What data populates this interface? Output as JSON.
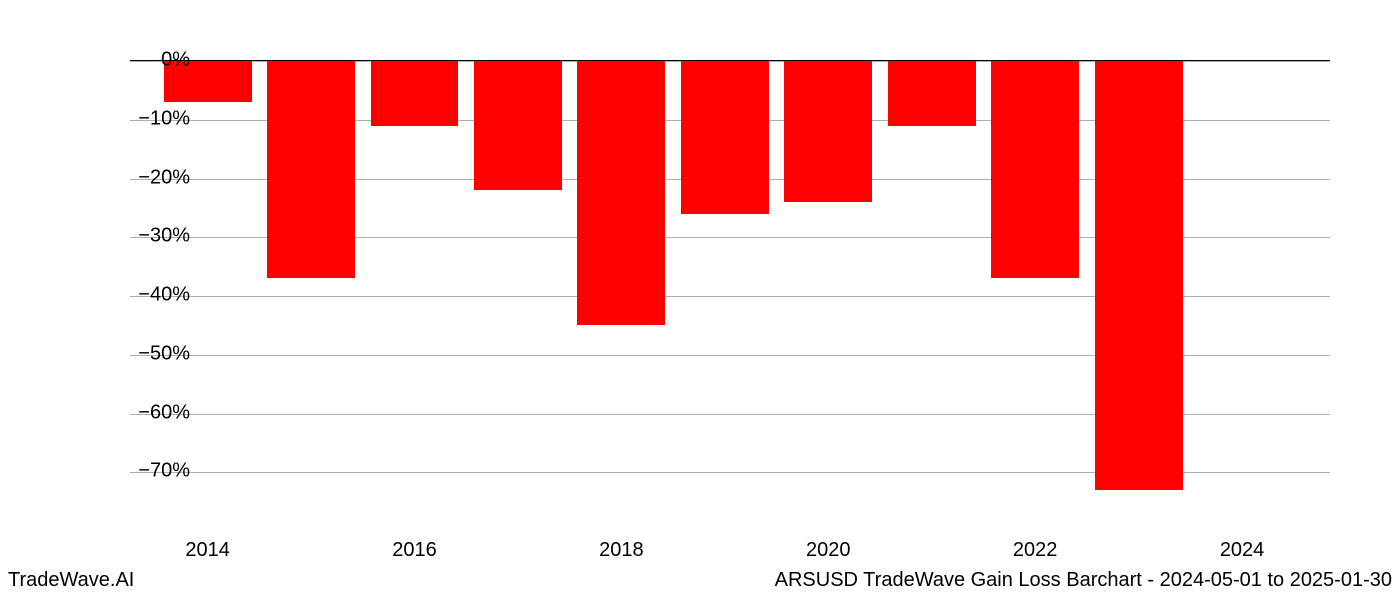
{
  "chart": {
    "type": "bar",
    "background_color": "#ffffff",
    "grid_color": "#b0b0b0",
    "axis_color": "#000000",
    "bar_color": "#ff0000",
    "text_color": "#000000",
    "tick_fontsize": 20,
    "footer_fontsize": 20,
    "ylim_min": -80,
    "ylim_max": 0,
    "ytick_step": 10,
    "y_ticks": [
      {
        "value": 0,
        "label": "0%"
      },
      {
        "value": -10,
        "label": "−10%"
      },
      {
        "value": -20,
        "label": "−20%"
      },
      {
        "value": -30,
        "label": "−30%"
      },
      {
        "value": -40,
        "label": "−40%"
      },
      {
        "value": -50,
        "label": "−50%"
      },
      {
        "value": -60,
        "label": "−60%"
      },
      {
        "value": -70,
        "label": "−70%"
      }
    ],
    "x_ticks": [
      "2014",
      "2016",
      "2018",
      "2020",
      "2022",
      "2024"
    ],
    "x_min": 2013.25,
    "x_max": 2024.85,
    "bar_width_years": 0.85,
    "data": [
      {
        "year": 2014,
        "value": -7
      },
      {
        "year": 2015,
        "value": -37
      },
      {
        "year": 2016,
        "value": -11
      },
      {
        "year": 2017,
        "value": -22
      },
      {
        "year": 2018,
        "value": -45
      },
      {
        "year": 2019,
        "value": -26
      },
      {
        "year": 2020,
        "value": -24
      },
      {
        "year": 2021,
        "value": -11
      },
      {
        "year": 2022,
        "value": -37
      },
      {
        "year": 2023,
        "value": -73
      }
    ]
  },
  "footer": {
    "left": "TradeWave.AI",
    "right": "ARSUSD TradeWave Gain Loss Barchart - 2024-05-01 to 2025-01-30"
  }
}
